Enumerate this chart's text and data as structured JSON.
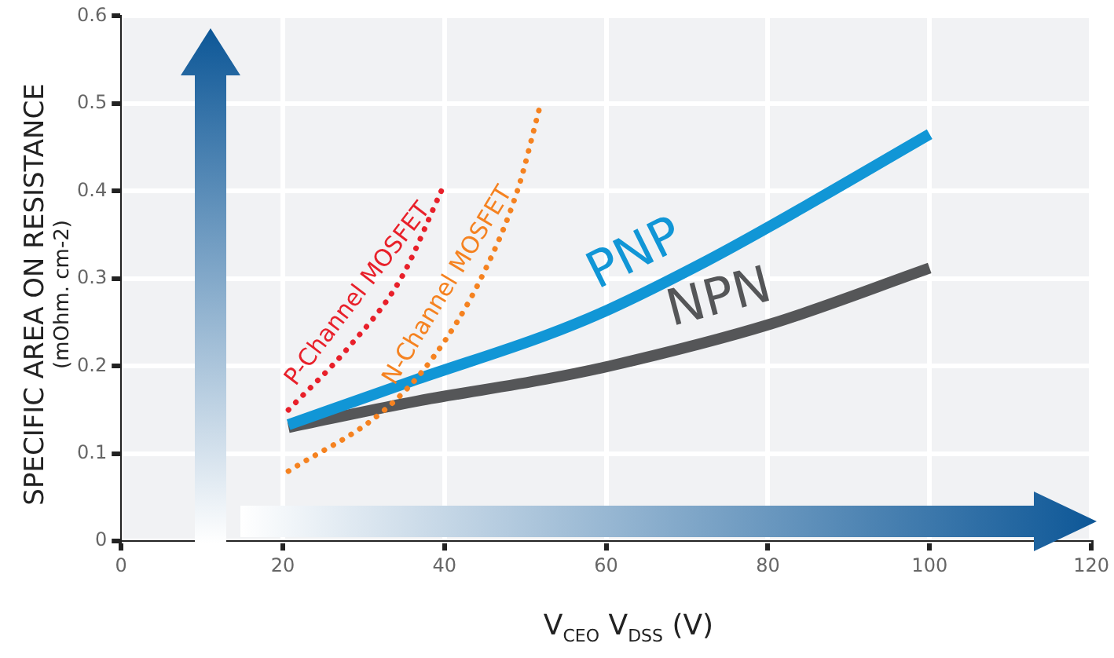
{
  "chart_data": {
    "type": "line",
    "xlabel": "V$_{CEO}$ V$_{DSS}$ (V)",
    "ylabel": "SPECIFIC AREA ON RESISTANCE (mOhm. cm-2)",
    "xlim": [
      0,
      120
    ],
    "xticks": [
      0,
      20,
      40,
      60,
      80,
      100,
      120
    ],
    "ylim": [
      0,
      0.6
    ],
    "yticks": [
      0,
      0.1,
      0.2,
      0.3,
      0.4,
      0.5,
      0.6
    ],
    "grid": true,
    "legend": false,
    "marker": "none",
    "series": [
      {
        "name": "P-Channel MOSFET",
        "color": "#e8202a",
        "line_style": "dotted",
        "x": [
          20.7,
          28,
          34.6,
          39.6
        ],
        "values": [
          0.15,
          0.22,
          0.3,
          0.4
        ]
      },
      {
        "name": "N-Channel MOSFET",
        "color": "#f58220",
        "line_style": "dotted",
        "x": [
          20.7,
          32.6,
          38.6,
          44.5,
          49,
          51.9
        ],
        "values": [
          0.08,
          0.15,
          0.21,
          0.3,
          0.4,
          0.5
        ]
      },
      {
        "name": "PNP",
        "color": "#1196d6",
        "line_style": "solid",
        "x": [
          20.7,
          36.6,
          52.5,
          60.4,
          72.4,
          80.3,
          100
        ],
        "values": [
          0.133,
          0.185,
          0.235,
          0.265,
          0.32,
          0.36,
          0.465
        ]
      },
      {
        "name": "NPN",
        "color": "#555658",
        "line_style": "solid",
        "x": [
          20.7,
          36.6,
          52.5,
          60.4,
          80.3,
          100
        ],
        "values": [
          0.13,
          0.16,
          0.185,
          0.2,
          0.248,
          0.312
        ]
      }
    ]
  }
}
